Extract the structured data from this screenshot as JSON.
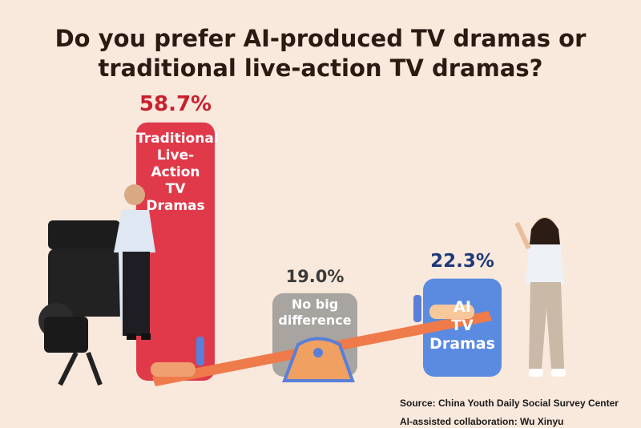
{
  "title_line1": "Do you prefer AI-produced TV dramas or",
  "title_line2": "traditional live-action TV dramas?",
  "source": "Source: China Youth Daily Social Survey Center",
  "credit": "AI-assisted collaboration: Wu Xinyu",
  "chart_data": {
    "type": "bar",
    "title": "Do you prefer AI-produced TV dramas or traditional live-action TV dramas?",
    "unit": "%",
    "categories": [
      "Traditional Live-Action TV Dramas",
      "No big difference",
      "AI TV Dramas"
    ],
    "values": [
      58.7,
      19.0,
      22.3
    ],
    "value_labels": [
      "58.7%",
      "19.0%",
      "22.3%"
    ],
    "bar_text": [
      [
        "Traditional",
        "Live-Action",
        "TV Dramas"
      ],
      [
        "No big",
        "difference"
      ],
      [
        "AI",
        "TV",
        "Dramas"
      ]
    ],
    "colors": [
      "#e03a4a",
      "#a8a4a0",
      "#5b8be0"
    ],
    "label_colors": [
      "#c8202e",
      "#3a3a3a",
      "#1e3a7a"
    ],
    "legend": "none",
    "grid": false
  }
}
